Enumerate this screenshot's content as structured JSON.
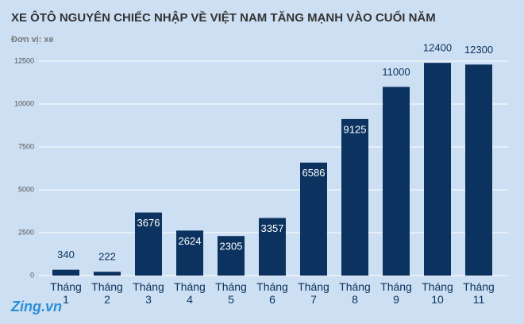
{
  "chart_data": {
    "type": "bar",
    "title": "XE ÔTÔ NGUYÊN CHIẾC NHẬP VỀ VIỆT NAM TĂNG MẠNH VÀO CUỐI NĂM",
    "subtitle": "Đơn vị: xe",
    "categories": [
      "Tháng 1",
      "Tháng 2",
      "Tháng 3",
      "Tháng 4",
      "Tháng 5",
      "Tháng 6",
      "Tháng 7",
      "Tháng 8",
      "Tháng 9",
      "Tháng 10",
      "Tháng 11"
    ],
    "values": [
      340,
      222,
      3676,
      2624,
      2305,
      3357,
      6586,
      9125,
      11000,
      12400,
      12300
    ],
    "color": "#0c3360",
    "ylim": [
      0,
      12500
    ],
    "yticks": [
      0,
      2500,
      5000,
      7500,
      10000,
      12500
    ],
    "grid": true,
    "watermark": "Zing.vn"
  }
}
